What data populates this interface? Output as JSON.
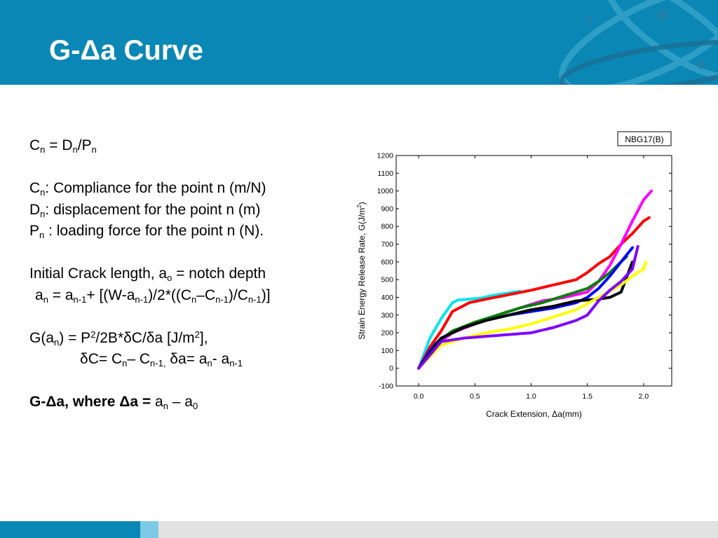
{
  "title": "G-Δa Curve",
  "text": {
    "l1": {
      "C": "C",
      "n1": "n",
      "eq": " = D",
      "n2": "n",
      "slash": "/P",
      "n3": "n"
    },
    "l2": {
      "C": "C",
      "n": "n",
      "rest": ": Compliance for the point n (m/N)"
    },
    "l3": {
      "D": "D",
      "n": "n",
      "rest": ": displacement for the point n (m)"
    },
    "l4": {
      "P": "P",
      "n": "n",
      "rest": " : loading force for the point n (N)."
    },
    "l5": {
      "a": "Initial Crack length, a",
      "o": "o",
      "rest": " = notch depth"
    },
    "l6": {
      "p1": "a",
      "s1": "n",
      "p2": " = a",
      "s2": "n-1",
      "p3": "+ [(W-a",
      "s3": "n-1",
      "p4": ")/2*((C",
      "s4": "n",
      "p5": "–C",
      "s5": "n-1",
      "p6": ")/C",
      "s6": "n-1",
      "p7": ")]"
    },
    "l7": {
      "p1": "G(a",
      "s1": "n",
      "p2": ") = P",
      "sup1": "2",
      "p3": "/2B*δC/δa [J/m",
      "sup2": "2",
      "p4": "],"
    },
    "l8": {
      "p1": "δC= C",
      "s1": "n",
      "p2": "– C",
      "s2": "n-1,",
      "p3": " δa= a",
      "s3": "n",
      "p4": "- a",
      "s4": "n-1"
    },
    "l9": {
      "b": "G-Δa, where Δa = ",
      "p1": " a",
      "s1": "n",
      "p2": " – a",
      "s2": "0"
    }
  },
  "chart_data": {
    "type": "scatter",
    "title": "NBG17(B)",
    "xlabel": "Crack Extension, Δa(mm)",
    "ylabel": "Strain Energy Release Rate, G(J/m",
    "ylabel_sup": "2",
    "ylabel_end": ")",
    "xlim": [
      -0.2,
      2.25
    ],
    "ylim": [
      -100,
      1200
    ],
    "xticks": [
      "0.0",
      "0.5",
      "1.0",
      "1.5",
      "2.0"
    ],
    "xtick_values": [
      0,
      0.5,
      1.0,
      1.5,
      2.0
    ],
    "yticks": [
      "-100",
      "0",
      "100",
      "200",
      "300",
      "400",
      "500",
      "600",
      "700",
      "800",
      "900",
      "1000",
      "1100",
      "1200"
    ],
    "ytick_values": [
      -100,
      0,
      100,
      200,
      300,
      400,
      500,
      600,
      700,
      800,
      900,
      1000,
      1100,
      1200
    ],
    "series": [
      {
        "color": "#00e5ee",
        "x": [
          0,
          0.1,
          0.2,
          0.3,
          0.35,
          0.45,
          0.55,
          0.65,
          0.75,
          0.85,
          0.9
        ],
        "y": [
          0,
          170,
          280,
          370,
          385,
          390,
          395,
          410,
          420,
          430,
          435
        ]
      },
      {
        "color": "#ff0000",
        "x": [
          0,
          0.1,
          0.2,
          0.3,
          0.45,
          0.6,
          0.8,
          1.0,
          1.2,
          1.4,
          1.5,
          1.6,
          1.7,
          1.8,
          1.9,
          2.0,
          2.05
        ],
        "y": [
          0,
          120,
          210,
          320,
          370,
          390,
          415,
          440,
          470,
          500,
          540,
          590,
          630,
          700,
          760,
          830,
          850
        ]
      },
      {
        "color": "#ff00ff",
        "x": [
          0,
          0.15,
          0.3,
          0.5,
          0.7,
          0.9,
          1.1,
          1.3,
          1.5,
          1.6,
          1.7,
          1.8,
          1.9,
          2.0,
          2.07
        ],
        "y": [
          0,
          130,
          200,
          250,
          300,
          340,
          380,
          400,
          430,
          490,
          580,
          700,
          830,
          950,
          1000
        ]
      },
      {
        "color": "#008000",
        "x": [
          0,
          0.15,
          0.3,
          0.5,
          0.7,
          0.9,
          1.1,
          1.3,
          1.5,
          1.6,
          1.7,
          1.8,
          1.85
        ],
        "y": [
          0,
          140,
          210,
          260,
          300,
          340,
          370,
          410,
          450,
          490,
          540,
          600,
          630
        ]
      },
      {
        "color": "#0000ff",
        "x": [
          0,
          0.1,
          0.2,
          0.4,
          0.6,
          0.8,
          1.0,
          1.2,
          1.4,
          1.5,
          1.6,
          1.7,
          1.8,
          1.9
        ],
        "y": [
          0,
          100,
          170,
          230,
          270,
          300,
          320,
          340,
          370,
          400,
          450,
          520,
          600,
          680
        ]
      },
      {
        "color": "#000000",
        "x": [
          0,
          0.2,
          0.4,
          0.6,
          0.8,
          1.0,
          1.2,
          1.4,
          1.6,
          1.7,
          1.8,
          1.9
        ],
        "y": [
          0,
          170,
          230,
          270,
          300,
          330,
          350,
          380,
          390,
          400,
          430,
          600
        ]
      },
      {
        "color": "#ffff00",
        "x": [
          0,
          0.2,
          0.4,
          0.6,
          0.8,
          1.0,
          1.2,
          1.4,
          1.6,
          1.8,
          1.9,
          2.0,
          2.02
        ],
        "y": [
          0,
          130,
          170,
          200,
          220,
          250,
          290,
          330,
          400,
          470,
          520,
          560,
          600
        ]
      },
      {
        "color": "#7f00ff",
        "x": [
          0,
          0.2,
          0.4,
          0.6,
          0.8,
          1.0,
          1.2,
          1.4,
          1.5,
          1.6,
          1.7,
          1.8,
          1.9,
          1.95
        ],
        "y": [
          0,
          150,
          170,
          180,
          190,
          200,
          230,
          270,
          300,
          380,
          440,
          490,
          560,
          690
        ]
      }
    ]
  }
}
